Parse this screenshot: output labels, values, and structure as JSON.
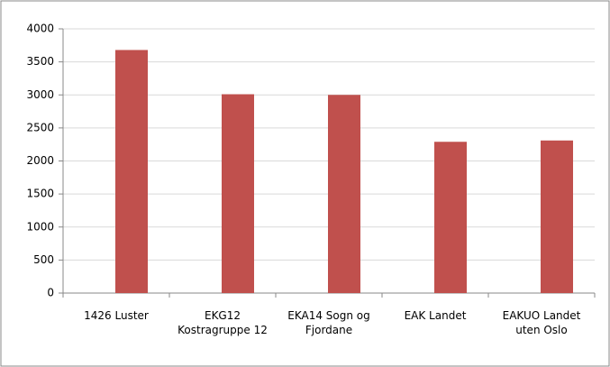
{
  "chart_data": {
    "type": "bar",
    "categories": [
      "1426 Luster",
      "EKG12 Kostragruppe 12",
      "EKA14 Sogn og Fjordane",
      "EAK Landet",
      "EAKUO Landet uten Oslo"
    ],
    "values": [
      3680,
      3010,
      3000,
      2290,
      2310
    ],
    "color": "#c0504d",
    "ylim": [
      0,
      4000
    ],
    "yticks": [
      0,
      500,
      1000,
      1500,
      2000,
      2500,
      3000,
      3500,
      4000
    ],
    "grid": true
  }
}
